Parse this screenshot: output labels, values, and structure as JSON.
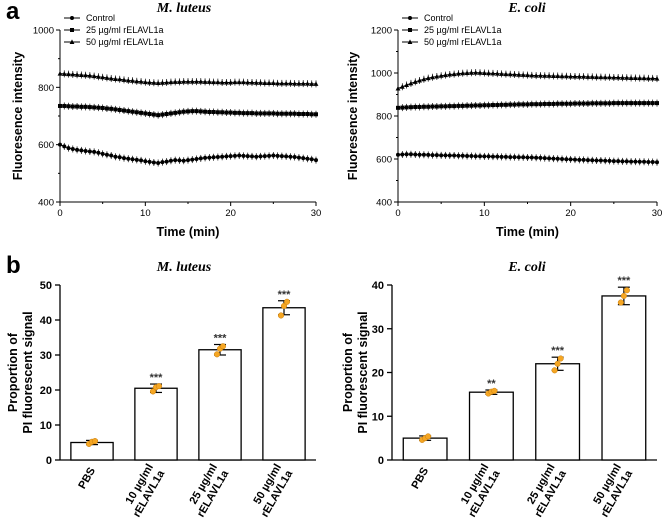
{
  "panels": {
    "a": "a",
    "b": "b"
  },
  "chart_data": [
    {
      "type": "line",
      "title": "M. luteus",
      "xlabel": "Time (min)",
      "ylabel": "Fluoresence intensity",
      "xlim": [
        0,
        30
      ],
      "ylim": [
        400,
        1000
      ],
      "xticks": [
        "0",
        "10",
        "20",
        "30"
      ],
      "yticks": [
        "400",
        "600",
        "800",
        "1000"
      ],
      "legend": "top-left",
      "series": [
        {
          "name": "Control",
          "marker": "circle",
          "values": [
            600,
            594,
            588,
            585,
            582,
            580,
            578,
            576,
            575,
            572,
            568,
            565,
            562,
            558,
            556,
            553,
            551,
            549,
            547,
            545,
            542,
            540,
            538,
            536,
            539,
            541,
            544,
            546,
            545,
            544,
            546,
            548,
            550,
            552,
            554,
            555,
            556,
            557,
            558,
            559,
            560,
            561,
            562,
            561,
            560,
            559,
            558,
            559,
            560,
            561,
            562,
            561,
            560,
            559,
            558,
            557,
            555,
            553,
            551,
            549,
            546
          ]
        },
        {
          "name": "25 µg/ml rELAVL1a",
          "marker": "square",
          "values": [
            735,
            735,
            734,
            733,
            733,
            732,
            732,
            731,
            730,
            729,
            728,
            726,
            725,
            723,
            721,
            719,
            717,
            715,
            713,
            711,
            709,
            707,
            705,
            703,
            705,
            707,
            709,
            711,
            713,
            715,
            716,
            717,
            717,
            716,
            715,
            714,
            714,
            713,
            713,
            712,
            712,
            711,
            711,
            710,
            710,
            710,
            709,
            709,
            709,
            709,
            709,
            708,
            708,
            708,
            708,
            708,
            707,
            707,
            707,
            706,
            706
          ]
        },
        {
          "name": "50 µg/ml rELAVL1a",
          "marker": "triangle",
          "values": [
            848,
            847,
            846,
            845,
            844,
            843,
            842,
            841,
            839,
            837,
            835,
            833,
            831,
            829,
            828,
            826,
            824,
            823,
            821,
            820,
            818,
            817,
            816,
            815,
            816,
            817,
            818,
            819,
            819,
            820,
            820,
            820,
            820,
            820,
            819,
            819,
            818,
            818,
            817,
            817,
            817,
            818,
            818,
            818,
            817,
            817,
            816,
            816,
            815,
            815,
            815,
            814,
            814,
            814,
            814,
            813,
            813,
            813,
            813,
            812,
            812
          ]
        }
      ]
    },
    {
      "type": "line",
      "title": "E. coli",
      "xlabel": "Time (min)",
      "ylabel": "Fluoresence intensity",
      "xlim": [
        0,
        30
      ],
      "ylim": [
        400,
        1200
      ],
      "xticks": [
        "0",
        "10",
        "20",
        "30"
      ],
      "yticks": [
        "400",
        "600",
        "800",
        "1000",
        "1200"
      ],
      "legend": "top-left",
      "series": [
        {
          "name": "Control",
          "marker": "circle",
          "values": [
            620,
            621,
            622,
            622,
            621,
            620,
            620,
            619,
            618,
            618,
            617,
            617,
            616,
            616,
            615,
            615,
            614,
            614,
            613,
            613,
            612,
            612,
            611,
            611,
            610,
            610,
            609,
            609,
            608,
            608,
            607,
            607,
            606,
            605,
            604,
            603,
            602,
            601,
            600,
            599,
            598,
            597,
            596,
            596,
            595,
            594,
            593,
            593,
            592,
            591,
            590,
            590,
            589,
            589,
            588,
            588,
            587,
            587,
            586,
            586,
            585
          ]
        },
        {
          "name": "25 µg/ml rELAVL1a",
          "marker": "square",
          "values": [
            838,
            839,
            840,
            841,
            842,
            842,
            843,
            843,
            844,
            844,
            845,
            845,
            846,
            846,
            847,
            847,
            848,
            848,
            849,
            849,
            850,
            850,
            851,
            851,
            852,
            852,
            853,
            853,
            854,
            854,
            854,
            855,
            855,
            855,
            856,
            856,
            856,
            857,
            857,
            857,
            857,
            858,
            858,
            858,
            858,
            859,
            859,
            859,
            859,
            859,
            860,
            860,
            860,
            860,
            860,
            860,
            860,
            860,
            860,
            860,
            860
          ]
        },
        {
          "name": "50 µg/ml rELAVL1a",
          "marker": "triangle",
          "values": [
            928,
            936,
            944,
            952,
            959,
            965,
            971,
            976,
            980,
            984,
            987,
            990,
            993,
            995,
            997,
            999,
            1000,
            1001,
            1002,
            1001,
            1000,
            999,
            998,
            997,
            996,
            995,
            994,
            993,
            992,
            991,
            990,
            989,
            988,
            988,
            987,
            987,
            986,
            986,
            985,
            985,
            984,
            984,
            983,
            983,
            982,
            982,
            981,
            981,
            980,
            980,
            979,
            979,
            978,
            978,
            977,
            977,
            976,
            976,
            975,
            975,
            974
          ]
        }
      ]
    },
    {
      "type": "bar",
      "title": "M. luteus",
      "ylabel": "Proportion of\nPI fluorescent signal",
      "ylim": [
        0,
        50
      ],
      "yticks": [
        "0",
        "10",
        "20",
        "30",
        "40",
        "50"
      ],
      "categories": [
        "PBS",
        "10 µg/ml\nrELAVL1a",
        "25 µg/ml\nrELAVL1a",
        "50 µg/ml\nrELAVL1a"
      ],
      "values": [
        5,
        20.5,
        31.5,
        43.5
      ],
      "errors": [
        0.6,
        1.2,
        1.5,
        2.0
      ],
      "points": [
        [
          4.6,
          5.2,
          5.4
        ],
        [
          19.6,
          20.8,
          21.1
        ],
        [
          30.2,
          31.8,
          32.5
        ],
        [
          41.3,
          44.0,
          45.2
        ]
      ],
      "significance": [
        "",
        "***",
        "***",
        "***"
      ]
    },
    {
      "type": "bar",
      "title": "E. coli",
      "ylabel": "Proportion of\nPI fluorescent signal",
      "ylim": [
        0,
        40
      ],
      "yticks": [
        "0",
        "10",
        "20",
        "30",
        "40"
      ],
      "categories": [
        "PBS",
        "10 µg/ml\nrELAVL1a",
        "25 µg/ml\nrELAVL1a",
        "50 µg/ml\nrELAVL1a"
      ],
      "values": [
        5,
        15.5,
        22,
        37.5
      ],
      "errors": [
        0.5,
        0.5,
        1.5,
        2.0
      ],
      "points": [
        [
          4.6,
          5.0,
          5.4
        ],
        [
          15.2,
          15.6,
          15.8
        ],
        [
          20.5,
          22.0,
          23.2
        ],
        [
          36.0,
          37.5,
          38.8
        ]
      ],
      "significance": [
        "",
        "**",
        "***",
        "***"
      ]
    }
  ]
}
